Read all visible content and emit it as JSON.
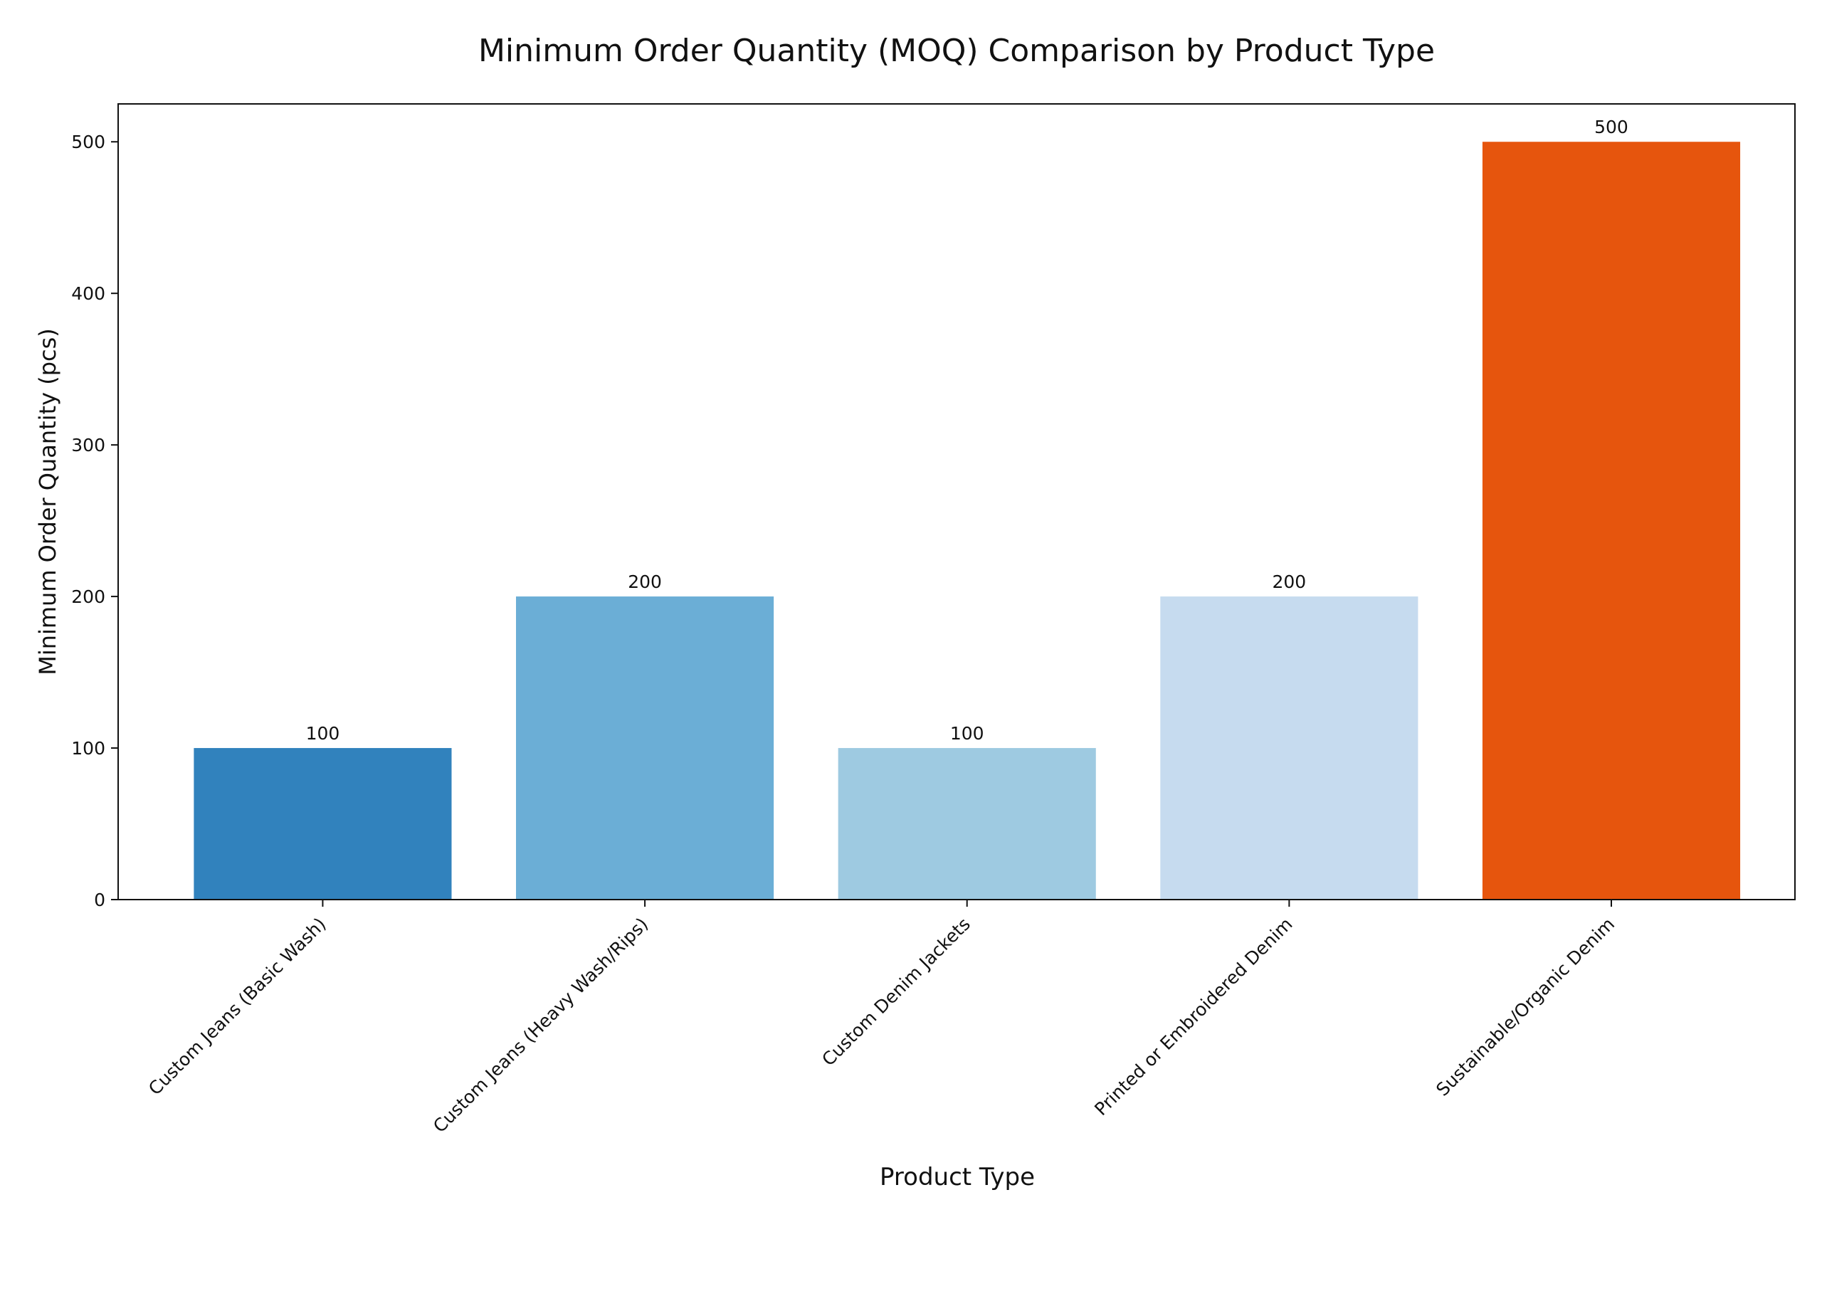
{
  "chart_data": {
    "type": "bar",
    "title": "Minimum Order Quantity (MOQ) Comparison by Product Type",
    "xlabel": "Product Type",
    "ylabel": "Minimum Order Quantity (pcs)",
    "categories": [
      "Custom Jeans (Basic Wash)",
      "Custom Jeans (Heavy Wash/Rips)",
      "Custom Denim Jackets",
      "Printed or Embroidered Denim",
      "Sustainable/Organic Denim"
    ],
    "values": [
      100,
      200,
      100,
      200,
      500
    ],
    "data_labels": [
      "100",
      "200",
      "100",
      "200",
      "500"
    ],
    "colors": [
      "#3182bd",
      "#6baed6",
      "#9ecae1",
      "#c6dbef",
      "#e6550d"
    ],
    "ylim": [
      0,
      525
    ],
    "yticks": [
      0,
      100,
      200,
      300,
      400,
      500
    ],
    "ytick_labels": [
      "0",
      "100",
      "200",
      "300",
      "400",
      "500"
    ],
    "grid": false,
    "legend": "none"
  }
}
